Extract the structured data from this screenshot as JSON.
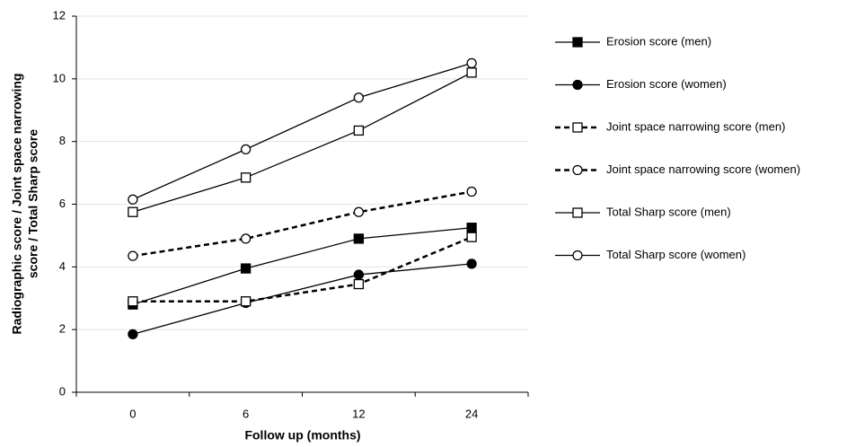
{
  "chart_data": {
    "type": "line",
    "xlabel": "Follow up (months)",
    "ylabel": [
      "Radiographic score / Joint space narrowing",
      "score / Total Sharp score"
    ],
    "categories": [
      "0",
      "6",
      "12",
      "24"
    ],
    "ylim": [
      0,
      12
    ],
    "yticks": [
      0,
      2,
      4,
      6,
      8,
      10,
      12
    ],
    "grid": true,
    "series": [
      {
        "name": "Erosion score (men)",
        "color": "#000000",
        "marker": "square",
        "filled": true,
        "dashed": false,
        "values": [
          2.8,
          3.95,
          4.9,
          5.25
        ]
      },
      {
        "name": "Erosion score (women)",
        "color": "#000000",
        "marker": "circle",
        "filled": true,
        "dashed": false,
        "values": [
          1.85,
          2.85,
          3.75,
          4.1
        ]
      },
      {
        "name": "Joint space narrowing score (men)",
        "color": "#000000",
        "marker": "square",
        "filled": false,
        "dashed": true,
        "values": [
          2.9,
          2.9,
          3.45,
          4.95
        ]
      },
      {
        "name": "Joint space narrowing score (women)",
        "color": "#000000",
        "marker": "circle",
        "filled": false,
        "dashed": true,
        "values": [
          4.35,
          4.9,
          5.75,
          6.4
        ]
      },
      {
        "name": "Total Sharp score (men)",
        "color": "#000000",
        "marker": "square",
        "filled": false,
        "dashed": false,
        "values": [
          5.75,
          6.85,
          8.35,
          10.2
        ]
      },
      {
        "name": "Total Sharp score (women)",
        "color": "#000000",
        "marker": "circle",
        "filled": false,
        "dashed": false,
        "values": [
          6.15,
          7.75,
          9.4,
          10.5
        ]
      }
    ]
  }
}
